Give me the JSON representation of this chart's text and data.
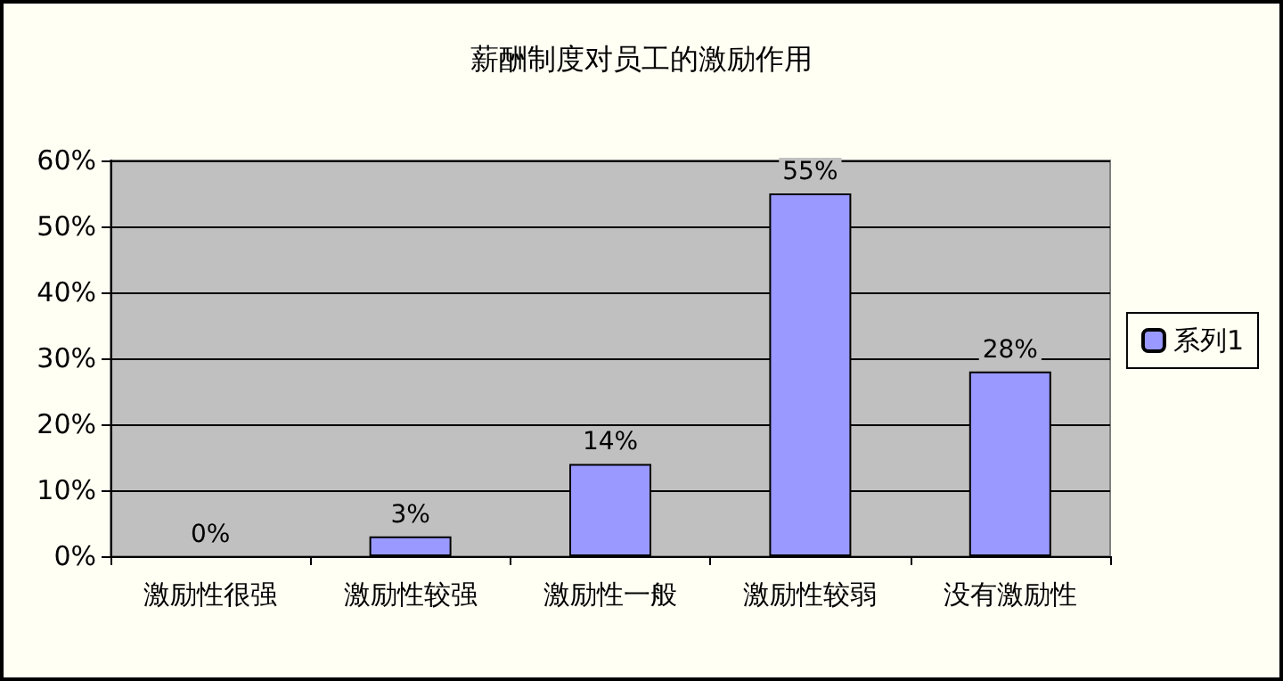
{
  "chart_data": {
    "type": "bar",
    "title": "薪酬制度对员工的激励作用",
    "categories": [
      "激励性很强",
      "激励性较强",
      "激励性一般",
      "激励性较弱",
      "没有激励性"
    ],
    "series": [
      {
        "name": "系列1",
        "color": "#9999ff",
        "values": [
          0,
          3,
          14,
          55,
          28
        ],
        "value_labels": [
          "0%",
          "3%",
          "14%",
          "55%",
          "28%"
        ]
      }
    ],
    "ylim": [
      0,
      60
    ],
    "yticks": [
      {
        "value": 0,
        "label": "0%"
      },
      {
        "value": 10,
        "label": "10%"
      },
      {
        "value": 20,
        "label": "20%"
      },
      {
        "value": 30,
        "label": "30%"
      },
      {
        "value": 40,
        "label": "40%"
      },
      {
        "value": 50,
        "label": "50%"
      },
      {
        "value": 60,
        "label": "60%"
      }
    ],
    "grid": "y",
    "legend": "right"
  }
}
